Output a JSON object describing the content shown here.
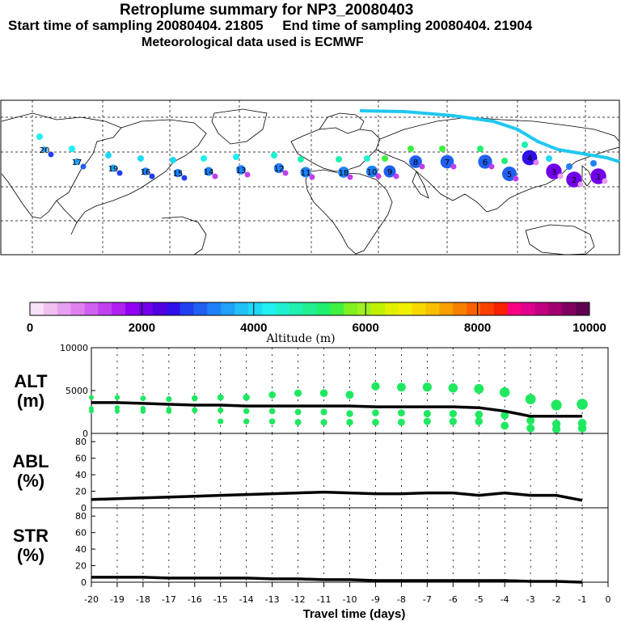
{
  "header": {
    "title": "Retroplume summary for NP3_20080403",
    "sampling_line": "Start time of sampling 20080404. 21805     End time of sampling 20080404. 21904",
    "met_line": "Meteorological data used is ECMWF"
  },
  "colorbar": {
    "ticks": [
      "0",
      "2000",
      "4000",
      "6000",
      "8000",
      "10000"
    ],
    "label": "Altitude (m)",
    "colors": [
      "#f8e0f8",
      "#f0c0f0",
      "#e8a0f0",
      "#e080f0",
      "#d060f0",
      "#c040f0",
      "#b020f0",
      "#9000f0",
      "#7000e8",
      "#5000e0",
      "#3010e8",
      "#2040f0",
      "#2060f0",
      "#2080f8",
      "#20a0f8",
      "#20c0f8",
      "#20d8f8",
      "#20f0f0",
      "#20f0d0",
      "#20f0b0",
      "#20f090",
      "#20f070",
      "#40f040",
      "#80f020",
      "#a0f020",
      "#c0f000",
      "#e0f000",
      "#f0f000",
      "#f8d800",
      "#f8c000",
      "#f8a000",
      "#f88000",
      "#f86000",
      "#f84000",
      "#f82000",
      "#f80080",
      "#e00090",
      "#c00080",
      "#a00070",
      "#800060",
      "#600050"
    ]
  },
  "map_labels": [
    {
      "t": "20"
    },
    {
      "t": "17"
    },
    {
      "t": "19"
    },
    {
      "t": "16"
    },
    {
      "t": "15"
    },
    {
      "t": "14"
    },
    {
      "t": "13"
    },
    {
      "t": "12"
    },
    {
      "t": "11"
    },
    {
      "t": "18"
    },
    {
      "t": "10"
    },
    {
      "t": "9"
    },
    {
      "t": "8"
    },
    {
      "t": "7"
    },
    {
      "t": "6"
    },
    {
      "t": "5"
    },
    {
      "t": "4"
    },
    {
      "t": "3"
    },
    {
      "t": "2"
    },
    {
      "t": "1"
    }
  ],
  "chart_data": [
    {
      "type": "line",
      "panel": "ALT",
      "ylabel": "ALT\n(m)",
      "ylim": [
        0,
        10000
      ],
      "yticks": [
        "10000",
        "5000",
        "0"
      ],
      "x": [
        -20,
        -19,
        -18,
        -17,
        -16,
        -15,
        -14,
        -13,
        -12,
        -11,
        -10,
        -9,
        -8,
        -7,
        -6,
        -5,
        -4,
        -3,
        -2,
        -1
      ],
      "values": [
        3600,
        3600,
        3500,
        3400,
        3300,
        3300,
        3200,
        3200,
        3200,
        3200,
        3200,
        3100,
        3100,
        3100,
        3100,
        3000,
        2600,
        2000,
        2000,
        2000
      ],
      "scatter_upper": [
        4200,
        4200,
        4100,
        4000,
        4100,
        4200,
        4200,
        4500,
        4700,
        4700,
        4500,
        5500,
        5400,
        5400,
        5300,
        5200,
        4800,
        4000,
        3300,
        3400
      ],
      "scatter_mid": [
        2600,
        2600,
        2600,
        2600,
        2700,
        2700,
        2600,
        2600,
        2500,
        2500,
        2300,
        2400,
        2400,
        2300,
        2300,
        2200,
        2100,
        1500,
        1100,
        1200
      ],
      "scatter_lower": [
        2900,
        3000,
        2900,
        2800,
        2700,
        1400,
        1400,
        1400,
        1300,
        1300,
        1300,
        1300,
        1300,
        1400,
        1400,
        1400,
        900,
        600,
        500,
        600
      ]
    },
    {
      "type": "line",
      "panel": "ABL",
      "ylabel": "ABL\n(%)",
      "ylim": [
        0,
        90
      ],
      "yticks": [
        "80",
        "60",
        "40",
        "20",
        "0"
      ],
      "x": [
        -20,
        -19,
        -18,
        -17,
        -16,
        -15,
        -14,
        -13,
        -12,
        -11,
        -10,
        -9,
        -8,
        -7,
        -6,
        -5,
        -4,
        -3,
        -2,
        -1
      ],
      "values": [
        10,
        11,
        12,
        13,
        14,
        15,
        16,
        17,
        18,
        19,
        18,
        17,
        17,
        18,
        18,
        15,
        18,
        15,
        15,
        9
      ]
    },
    {
      "type": "line",
      "panel": "STR",
      "ylabel": "STR\n(%)",
      "ylim": [
        0,
        90
      ],
      "yticks": [
        "80",
        "60",
        "40",
        "20",
        "0"
      ],
      "x": [
        -20,
        -19,
        -18,
        -17,
        -16,
        -15,
        -14,
        -13,
        -12,
        -11,
        -10,
        -9,
        -8,
        -7,
        -6,
        -5,
        -4,
        -3,
        -2,
        -1
      ],
      "values": [
        6,
        6,
        6,
        5,
        5,
        5,
        5,
        4,
        4,
        3,
        3,
        2,
        2,
        2,
        2,
        2,
        2,
        1,
        1,
        0
      ]
    }
  ],
  "xaxis": {
    "ticks": [
      "-20",
      "-19",
      "-18",
      "-17",
      "-16",
      "-15",
      "-14",
      "-13",
      "-12",
      "-11",
      "-10",
      "-9",
      "-8",
      "-7",
      "-6",
      "-5",
      "-4",
      "-3",
      "-2",
      "-1",
      "0"
    ],
    "xlabel": "Travel time (days)",
    "xlim": [
      -20,
      0
    ]
  }
}
